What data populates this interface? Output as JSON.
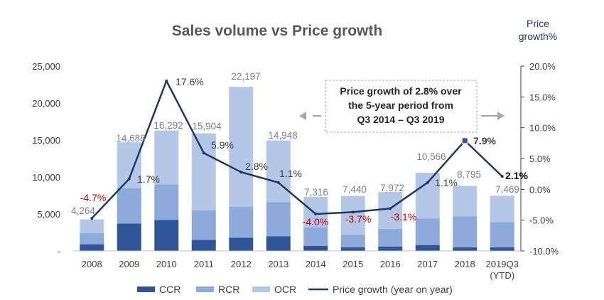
{
  "chart_data": {
    "type": "bar",
    "title": "Sales volume vs Price growth",
    "y2label": "Price growth%",
    "categories": [
      "2008",
      "2009",
      "2010",
      "2011",
      "2012",
      "2013",
      "2014",
      "2015",
      "2016",
      "2017",
      "2018",
      "2019Q3 (YTD)"
    ],
    "ylim": [
      0,
      25000
    ],
    "y_ticks": [
      "-",
      "5,000",
      "10,000",
      "15,000",
      "20,000",
      "25,000"
    ],
    "y2lim": [
      -10,
      20
    ],
    "y2_ticks": [
      "-10.0%",
      "-5.0%",
      "0.0%",
      "5.0%",
      "10.0%",
      "15.0%",
      "20.0%"
    ],
    "series": [
      {
        "name": "CCR",
        "kind": "stacked-bar",
        "color": "#2e5597",
        "values": [
          900,
          3700,
          4200,
          1500,
          1800,
          2000,
          700,
          500,
          600,
          800,
          500,
          500
        ]
      },
      {
        "name": "RCR",
        "kind": "stacked-bar",
        "color": "#8eaadb",
        "values": [
          1500,
          4800,
          4800,
          4000,
          4200,
          4600,
          2500,
          1700,
          2400,
          3600,
          4200,
          3400
        ]
      },
      {
        "name": "OCR",
        "kind": "stacked-bar",
        "color": "#b4c7e7",
        "values": [
          1864,
          6188,
          7292,
          10404,
          16197,
          8348,
          4116,
          5240,
          4972,
          6166,
          4095,
          3569
        ]
      },
      {
        "name": "Price growth (year on year)",
        "kind": "line",
        "axis": "right",
        "color": "#1f3864",
        "values": [
          -4.7,
          1.7,
          17.6,
          5.9,
          2.8,
          1.1,
          -4.0,
          -3.7,
          -3.1,
          1.1,
          7.9,
          2.1
        ]
      }
    ],
    "total_labels": [
      "4,264",
      "14,688",
      "16,292",
      "15,904",
      "22,197",
      "14,948",
      "7,316",
      "7,440",
      "7,972",
      "10,566",
      "8,795",
      "7,469"
    ],
    "growth_labels": [
      "-4.7%",
      "1.7%",
      "17.6%",
      "5.9%",
      "2.8%",
      "1.1%",
      "-4.0%",
      "-3.7%",
      "-3.1%",
      "1.1%",
      "7.9%",
      "2.1%"
    ],
    "annotation": {
      "lines": [
        "Price growth of 2.8% over",
        "the 5-year period from",
        "Q3 2014 – Q3 2019"
      ]
    },
    "grid": false,
    "legend_position": "bottom"
  }
}
